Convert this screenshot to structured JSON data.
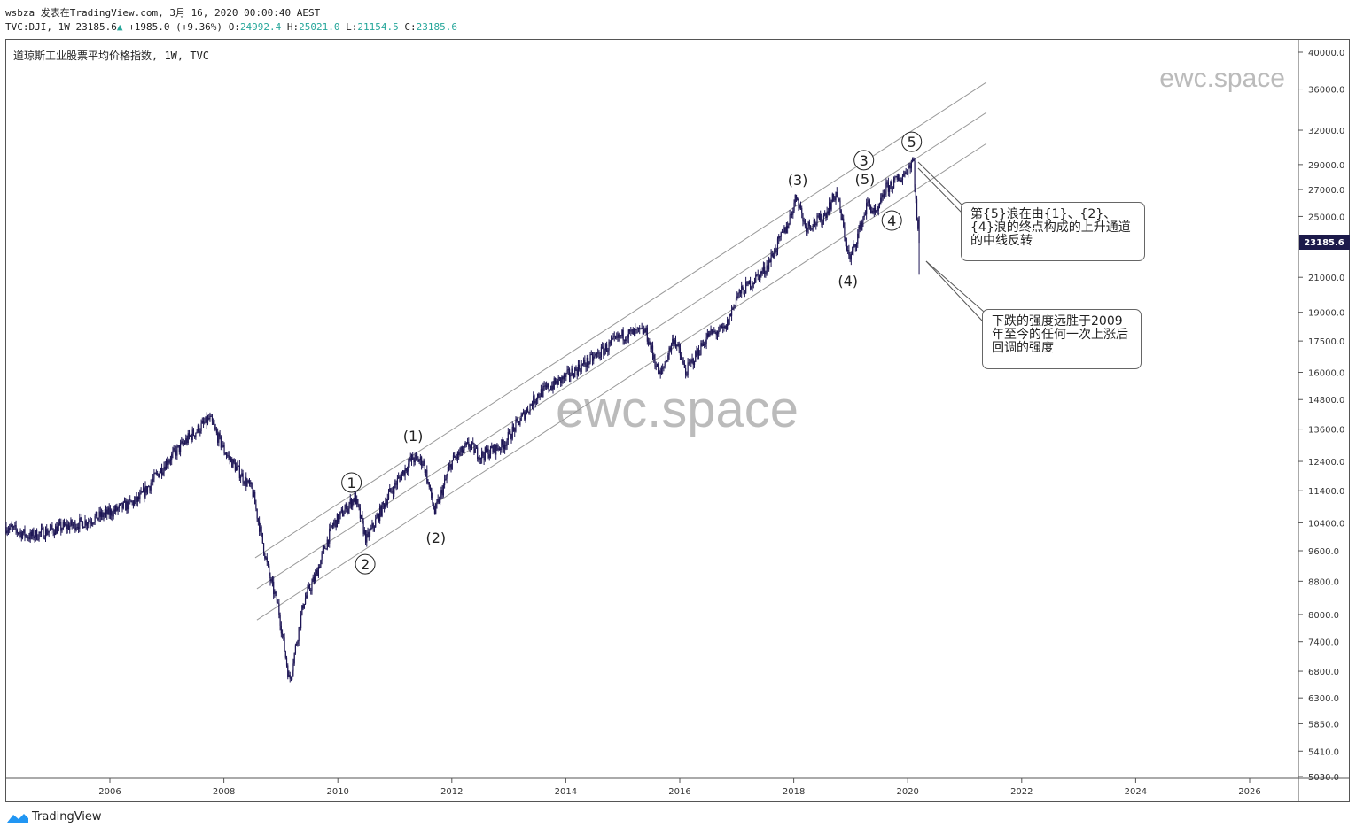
{
  "header": {
    "line1": "wsbza 发表在TradingView.com, 3月 16, 2020 00:00:40 AEST",
    "symbol": "TVC:DJI, 1W 23185.6",
    "change": "+1985.0 (+9.36%)",
    "o_label": "O:",
    "o": "24992.4",
    "h_label": "H:",
    "h": "25021.0",
    "l_label": "L:",
    "l": "21154.5",
    "c_label": "C:",
    "c": "23185.6"
  },
  "pane_title": "道琼斯工业股票平均价格指数, 1W, TVC",
  "watermark": "ewc.space",
  "footer": {
    "brand": "TradingView"
  },
  "colors": {
    "candle": "#1c1454",
    "last_price_bg": "#1c1a4a",
    "up": "#26a69a",
    "channel": "#999999",
    "logo": "#2196f3"
  },
  "callouts": [
    {
      "text": "第{5}浪在由{1}、{2}、{4}浪的终点构成的上升通道的中线反转"
    },
    {
      "text": "下跌的强度远胜于2009年至今的任何一次上涨后回调的强度"
    }
  ],
  "chart_data": {
    "type": "candlestick",
    "title": "道琼斯工业股票平均价格指数, 1W, TVC",
    "scale": "log",
    "ylim": [
      5030,
      40000
    ],
    "xlim": [
      2004.18,
      2026.9
    ],
    "y_ticks": [
      "40000.0",
      "36000.0",
      "32000.0",
      "29000.0",
      "27000.0",
      "25000.0",
      "21000.0",
      "19000.0",
      "17500.0",
      "16000.0",
      "14800.0",
      "13600.0",
      "12400.0",
      "11400.0",
      "10400.0",
      "9600.0",
      "8800.0",
      "8000.0",
      "7400.0",
      "6800.0",
      "6300.0",
      "5850.0",
      "5410.0",
      "5030.0"
    ],
    "x_ticks": [
      "2006",
      "2008",
      "2010",
      "2012",
      "2014",
      "2016",
      "2018",
      "2020",
      "2022",
      "2024",
      "2026"
    ],
    "last_price": "23185.6",
    "price_path": [
      [
        2004.18,
        10280
      ],
      [
        2004.6,
        10000
      ],
      [
        2005.0,
        10200
      ],
      [
        2005.5,
        10400
      ],
      [
        2006.0,
        10700
      ],
      [
        2006.5,
        11100
      ],
      [
        2007.0,
        12400
      ],
      [
        2007.4,
        13300
      ],
      [
        2007.75,
        14000
      ],
      [
        2008.0,
        12800
      ],
      [
        2008.5,
        11400
      ],
      [
        2008.8,
        8900
      ],
      [
        2008.95,
        8200
      ],
      [
        2009.15,
        6600
      ],
      [
        2009.4,
        8300
      ],
      [
        2009.6,
        8900
      ],
      [
        2009.9,
        10300
      ],
      [
        2010.3,
        11200
      ],
      [
        2010.5,
        9900
      ],
      [
        2010.9,
        11300
      ],
      [
        2011.3,
        12500
      ],
      [
        2011.5,
        12400
      ],
      [
        2011.7,
        10700
      ],
      [
        2012.0,
        12400
      ],
      [
        2012.3,
        13000
      ],
      [
        2012.5,
        12600
      ],
      [
        2012.9,
        13000
      ],
      [
        2013.5,
        15000
      ],
      [
        2014.0,
        15800
      ],
      [
        2014.5,
        16700
      ],
      [
        2015.0,
        17800
      ],
      [
        2015.4,
        18000
      ],
      [
        2015.65,
        15800
      ],
      [
        2015.9,
        17700
      ],
      [
        2016.1,
        16000
      ],
      [
        2016.5,
        17800
      ],
      [
        2016.8,
        18100
      ],
      [
        2017.0,
        19900
      ],
      [
        2017.5,
        21500
      ],
      [
        2017.9,
        24500
      ],
      [
        2018.05,
        26600
      ],
      [
        2018.2,
        24300
      ],
      [
        2018.5,
        24800
      ],
      [
        2018.75,
        26800
      ],
      [
        2018.98,
        22000
      ],
      [
        2019.3,
        26000
      ],
      [
        2019.45,
        25000
      ],
      [
        2019.6,
        27000
      ],
      [
        2019.9,
        28000
      ],
      [
        2020.1,
        29500
      ],
      [
        2020.15,
        25400
      ],
      [
        2020.2,
        23185.6
      ]
    ],
    "last_candle": {
      "open": 24992.4,
      "high": 25021.0,
      "low": 21154.5,
      "close": 23185.6
    },
    "channel_lines": [
      {
        "name": "upper",
        "from": [
          2008.55,
          9410
        ],
        "to": [
          2021.38,
          36700
        ]
      },
      {
        "name": "middle",
        "from": [
          2008.58,
          8610
        ],
        "to": [
          2021.38,
          33660
        ]
      },
      {
        "name": "lower",
        "from": [
          2008.58,
          7875
        ],
        "to": [
          2021.38,
          30800
        ]
      }
    ],
    "wave_labels": [
      {
        "text": "1",
        "circled": true,
        "year": 2010.24,
        "price": 11670
      },
      {
        "text": "2",
        "circled": true,
        "year": 2010.48,
        "price": 9240
      },
      {
        "text": "(1)",
        "circled": false,
        "year": 2011.32,
        "price": 13350
      },
      {
        "text": "(2)",
        "circled": false,
        "year": 2011.72,
        "price": 9970
      },
      {
        "text": "(3)",
        "circled": false,
        "year": 2018.07,
        "price": 27770
      },
      {
        "text": "(4)",
        "circled": false,
        "year": 2018.95,
        "price": 20800
      },
      {
        "text": "(5)",
        "circled": false,
        "year": 2019.25,
        "price": 27840
      },
      {
        "text": "3",
        "circled": true,
        "year": 2019.23,
        "price": 29370
      },
      {
        "text": "4",
        "circled": true,
        "year": 2019.72,
        "price": 24710
      },
      {
        "text": "5",
        "circled": true,
        "year": 2020.07,
        "price": 30960
      }
    ]
  }
}
